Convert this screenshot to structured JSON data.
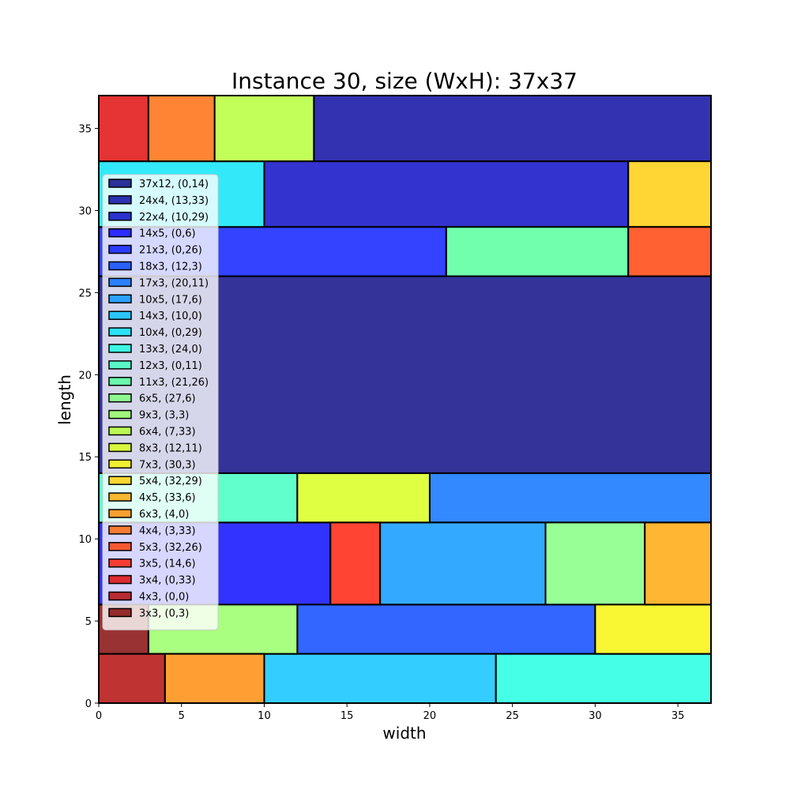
{
  "chart_data": {
    "type": "rectangle-packing",
    "title": "Instance 30, size (WxH): 37x37",
    "xlabel": "width",
    "ylabel": "length",
    "xlim": [
      0,
      37
    ],
    "ylim": [
      0,
      37
    ],
    "xticks": [
      0,
      5,
      10,
      15,
      20,
      25,
      30,
      35
    ],
    "yticks": [
      0,
      5,
      10,
      15,
      20,
      25,
      30,
      35
    ],
    "grid": false,
    "legend_placement": "upper-left",
    "rectangles": [
      {
        "label": "37x12, (0,14)",
        "w": 37,
        "h": 12,
        "x": 0,
        "y": 14,
        "color": "#00007f"
      },
      {
        "label": "24x4, (13,33)",
        "w": 24,
        "h": 4,
        "x": 13,
        "y": 33,
        "color": "#00009f"
      },
      {
        "label": "22x4, (10,29)",
        "w": 22,
        "h": 4,
        "x": 10,
        "y": 29,
        "color": "#0000c4"
      },
      {
        "label": "14x5, (0,6)",
        "w": 14,
        "h": 5,
        "x": 0,
        "y": 6,
        "color": "#0000ff"
      },
      {
        "label": "21x3, (0,26)",
        "w": 21,
        "h": 3,
        "x": 0,
        "y": 26,
        "color": "#0014ff"
      },
      {
        "label": "18x3, (12,3)",
        "w": 18,
        "h": 3,
        "x": 12,
        "y": 3,
        "color": "#0040ff"
      },
      {
        "label": "17x3, (20,11)",
        "w": 17,
        "h": 3,
        "x": 20,
        "y": 11,
        "color": "#006cff"
      },
      {
        "label": "10x5, (17,6)",
        "w": 10,
        "h": 5,
        "x": 17,
        "y": 6,
        "color": "#0094ff"
      },
      {
        "label": "14x3, (10,0)",
        "w": 14,
        "h": 3,
        "x": 10,
        "y": 0,
        "color": "#00c0ff"
      },
      {
        "label": "10x4, (0,29)",
        "w": 10,
        "h": 4,
        "x": 0,
        "y": 29,
        "color": "#00e4f8"
      },
      {
        "label": "13x3, (24,0)",
        "w": 13,
        "h": 3,
        "x": 24,
        "y": 0,
        "color": "#16ffe1"
      },
      {
        "label": "12x3, (0,11)",
        "w": 12,
        "h": 3,
        "x": 0,
        "y": 11,
        "color": "#39ffbe"
      },
      {
        "label": "11x3, (21,26)",
        "w": 11,
        "h": 3,
        "x": 21,
        "y": 26,
        "color": "#4dff9a"
      },
      {
        "label": "6x5, (27,6)",
        "w": 6,
        "h": 5,
        "x": 27,
        "y": 6,
        "color": "#7dff7a"
      },
      {
        "label": "9x3, (3,3)",
        "w": 9,
        "h": 3,
        "x": 3,
        "y": 3,
        "color": "#94ff60"
      },
      {
        "label": "6x4, (7,33)",
        "w": 6,
        "h": 4,
        "x": 7,
        "y": 33,
        "color": "#b4ff30"
      },
      {
        "label": "8x3, (12,11)",
        "w": 8,
        "h": 3,
        "x": 12,
        "y": 11,
        "color": "#d7ff14"
      },
      {
        "label": "7x3, (30,3)",
        "w": 7,
        "h": 3,
        "x": 30,
        "y": 3,
        "color": "#f8f500"
      },
      {
        "label": "5x4, (32,29)",
        "w": 5,
        "h": 4,
        "x": 32,
        "y": 29,
        "color": "#ffcc00"
      },
      {
        "label": "4x5, (33,6)",
        "w": 4,
        "h": 5,
        "x": 33,
        "y": 6,
        "color": "#ffa400"
      },
      {
        "label": "6x3, (4,0)",
        "w": 6,
        "h": 3,
        "x": 4,
        "y": 0,
        "color": "#ff8700"
      },
      {
        "label": "4x4, (3,33)",
        "w": 4,
        "h": 4,
        "x": 3,
        "y": 33,
        "color": "#ff6500"
      },
      {
        "label": "5x3, (32,26)",
        "w": 5,
        "h": 3,
        "x": 32,
        "y": 26,
        "color": "#ff3a00"
      },
      {
        "label": "3x5, (14,6)",
        "w": 3,
        "h": 5,
        "x": 14,
        "y": 6,
        "color": "#ff1500"
      },
      {
        "label": "3x4, (0,33)",
        "w": 3,
        "h": 4,
        "x": 0,
        "y": 33,
        "color": "#e00000"
      },
      {
        "label": "4x3, (0,0)",
        "w": 4,
        "h": 3,
        "x": 0,
        "y": 0,
        "color": "#b00000"
      },
      {
        "label": "3x3, (0,3)",
        "w": 3,
        "h": 3,
        "x": 0,
        "y": 3,
        "color": "#7f0000"
      }
    ]
  }
}
